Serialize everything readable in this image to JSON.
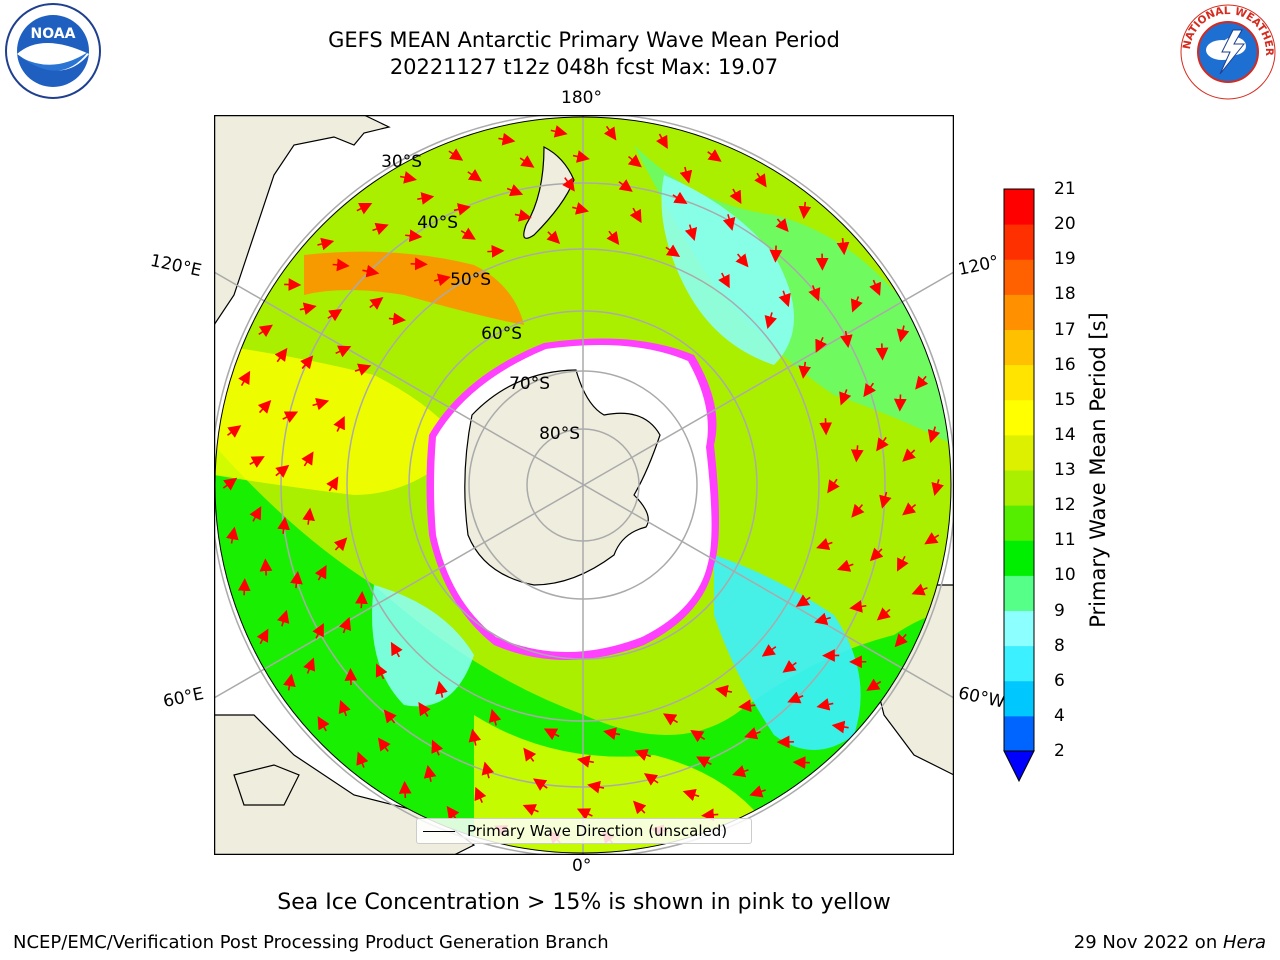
{
  "header": {
    "title_line1": "GEFS MEAN Antarctic Primary Wave Mean Period",
    "title_line2": "20221127 t12z 048h fcst   Max: 19.07"
  },
  "logos": {
    "left": {
      "text": "NOAA",
      "icon": "noaa-logo-icon"
    },
    "right": {
      "text": "NATIONAL WEATHER SERVICE",
      "icon": "nws-logo-icon"
    }
  },
  "map": {
    "projection": "south-polar-stereographic",
    "longitude_labels": {
      "top": "180°",
      "bottom": "0°",
      "left_upper": "120°E",
      "left_lower": "60°E",
      "right_upper": "120°",
      "right_lower": "60°W"
    },
    "latitude_labels": [
      "30°S",
      "40°S",
      "50°S",
      "60°S",
      "70°S",
      "80°S"
    ],
    "land_color": "#efedde",
    "sea_ice_color": "#ffffff"
  },
  "colorbar": {
    "label": "Primary Wave Mean Period [s]",
    "ticks": [
      "2",
      "4",
      "6",
      "8",
      "9",
      "10",
      "11",
      "12",
      "13",
      "14",
      "15",
      "16",
      "17",
      "18",
      "19",
      "20",
      "21"
    ],
    "colors": [
      "#0065ff",
      "#00c8ff",
      "#3cf0ff",
      "#8cffff",
      "#55ff88",
      "#00ee00",
      "#55ee00",
      "#aaee00",
      "#ddf000",
      "#ffff00",
      "#ffe400",
      "#ffc000",
      "#ff9000",
      "#ff6000",
      "#ff3000",
      "#ff0000"
    ],
    "extend_color": "#0000ff"
  },
  "legend": {
    "label": "Primary Wave Direction (unscaled)"
  },
  "notes": {
    "sea_ice": "Sea Ice Concentration > 15% is shown in pink to yellow"
  },
  "footer": {
    "left": "NCEP/EMC/Verification Post Processing Product Generation Branch",
    "right_prefix": "29 Nov 2022 on ",
    "right_italic": "Hera"
  }
}
